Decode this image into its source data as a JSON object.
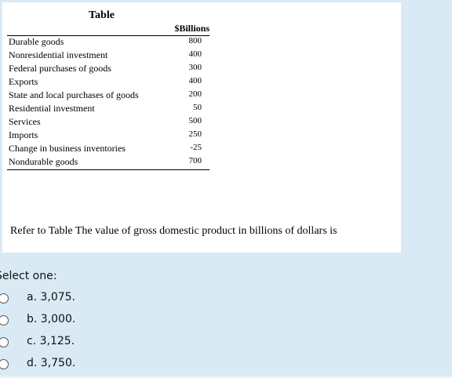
{
  "table": {
    "title": "Table",
    "unit_header": "$Billions",
    "rows": [
      {
        "label": "Durable goods",
        "value": "800"
      },
      {
        "label": "Nonresidential investment",
        "value": "400"
      },
      {
        "label": "Federal purchases of goods",
        "value": "300"
      },
      {
        "label": "Exports",
        "value": "400"
      },
      {
        "label": "State and local purchases of goods",
        "value": "200"
      },
      {
        "label": "Residential investment",
        "value": "50"
      },
      {
        "label": "Services",
        "value": "500"
      },
      {
        "label": "Imports",
        "value": "250"
      },
      {
        "label": "Change in business inventories",
        "value": "-25"
      },
      {
        "label": "Nondurable goods",
        "value": "700"
      }
    ]
  },
  "question": {
    "text": "Refer to Table   The value of gross domestic product in billions of dollars is"
  },
  "answer": {
    "prompt": "Select one:",
    "options": [
      {
        "label": "a. 3,075."
      },
      {
        "label": "b. 3,000."
      },
      {
        "label": "c. 3,125."
      },
      {
        "label": "d. 3,750."
      }
    ]
  }
}
